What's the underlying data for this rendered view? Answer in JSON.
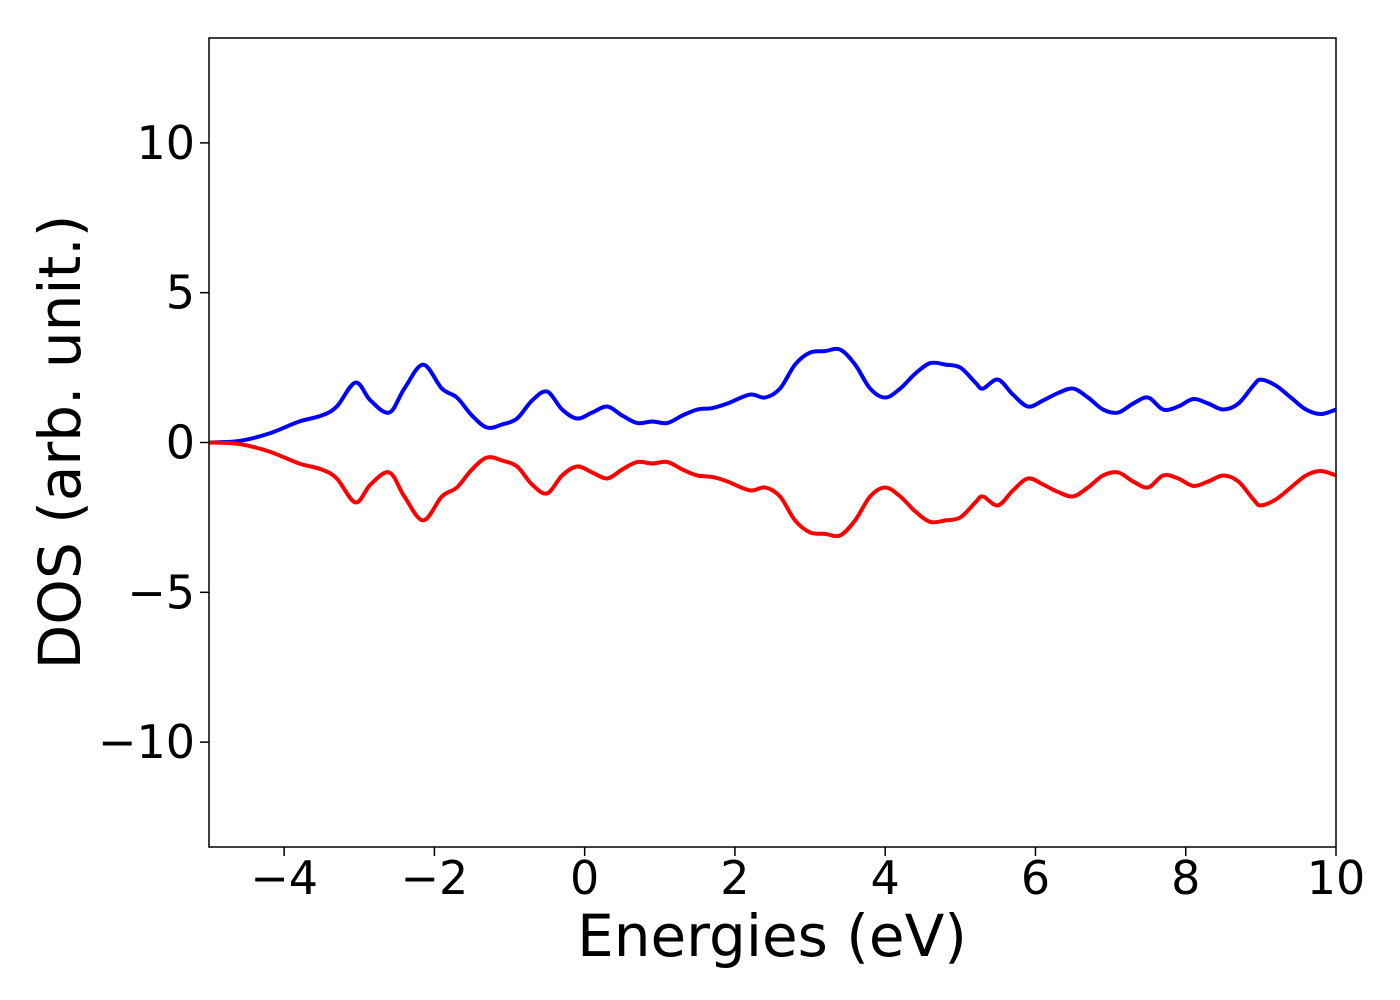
{
  "chart_data": {
    "type": "line",
    "title": "",
    "xlabel": "Energies (eV)",
    "ylabel": "DOS (arb. unit.)",
    "xlim": [
      -5,
      10
    ],
    "ylim": [
      -13.5,
      13.5
    ],
    "xticks": [
      -4,
      -2,
      0,
      2,
      4,
      6,
      8,
      10
    ],
    "xtick_labels": [
      "−4",
      "−2",
      "0",
      "2",
      "4",
      "6",
      "8",
      "10"
    ],
    "yticks": [
      -10,
      -5,
      0,
      5,
      10
    ],
    "ytick_labels": [
      "−10",
      "−5",
      "0",
      "5",
      "10"
    ],
    "grid": false,
    "legend": "none",
    "series": [
      {
        "color": "#0000ff",
        "x": [
          -5.0,
          -4.6,
          -4.2,
          -3.8,
          -3.5,
          -3.3,
          -3.05,
          -2.85,
          -2.6,
          -2.4,
          -2.15,
          -1.9,
          -1.7,
          -1.5,
          -1.3,
          -1.1,
          -0.9,
          -0.7,
          -0.5,
          -0.3,
          -0.1,
          0.1,
          0.3,
          0.5,
          0.7,
          0.9,
          1.1,
          1.3,
          1.5,
          1.7,
          1.9,
          2.2,
          2.4,
          2.6,
          2.8,
          3.0,
          3.2,
          3.4,
          3.6,
          3.8,
          4.0,
          4.2,
          4.4,
          4.6,
          4.8,
          5.0,
          5.2,
          5.3,
          5.5,
          5.7,
          5.9,
          6.1,
          6.3,
          6.5,
          6.7,
          6.9,
          7.1,
          7.3,
          7.5,
          7.7,
          7.9,
          8.1,
          8.3,
          8.5,
          8.7,
          8.9,
          9.0,
          9.2,
          9.4,
          9.6,
          9.8,
          10.0
        ],
        "y": [
          0.0,
          0.05,
          0.3,
          0.7,
          0.9,
          1.2,
          2.0,
          1.4,
          1.0,
          1.8,
          2.6,
          1.8,
          1.5,
          0.9,
          0.5,
          0.6,
          0.8,
          1.4,
          1.7,
          1.1,
          0.8,
          1.0,
          1.2,
          0.9,
          0.65,
          0.7,
          0.65,
          0.9,
          1.1,
          1.15,
          1.3,
          1.6,
          1.5,
          1.8,
          2.6,
          3.0,
          3.05,
          3.1,
          2.6,
          1.8,
          1.5,
          1.8,
          2.3,
          2.65,
          2.6,
          2.5,
          2.0,
          1.8,
          2.1,
          1.6,
          1.2,
          1.4,
          1.65,
          1.8,
          1.5,
          1.1,
          1.0,
          1.3,
          1.5,
          1.1,
          1.2,
          1.45,
          1.3,
          1.1,
          1.3,
          1.9,
          2.1,
          1.9,
          1.5,
          1.1,
          0.95,
          1.1
        ]
      },
      {
        "color": "#ff0000",
        "x": [
          -5.0,
          -4.6,
          -4.2,
          -3.8,
          -3.5,
          -3.3,
          -3.05,
          -2.85,
          -2.6,
          -2.4,
          -2.15,
          -1.9,
          -1.7,
          -1.5,
          -1.3,
          -1.1,
          -0.9,
          -0.7,
          -0.5,
          -0.3,
          -0.1,
          0.1,
          0.3,
          0.5,
          0.7,
          0.9,
          1.1,
          1.3,
          1.5,
          1.7,
          1.9,
          2.2,
          2.4,
          2.6,
          2.8,
          3.0,
          3.2,
          3.4,
          3.6,
          3.8,
          4.0,
          4.2,
          4.4,
          4.6,
          4.8,
          5.0,
          5.2,
          5.3,
          5.5,
          5.7,
          5.9,
          6.1,
          6.3,
          6.5,
          6.7,
          6.9,
          7.1,
          7.3,
          7.5,
          7.7,
          7.9,
          8.1,
          8.3,
          8.5,
          8.7,
          8.9,
          9.0,
          9.2,
          9.4,
          9.6,
          9.8,
          10.0
        ],
        "y": [
          0.0,
          -0.05,
          -0.3,
          -0.7,
          -0.9,
          -1.2,
          -2.0,
          -1.4,
          -1.0,
          -1.8,
          -2.6,
          -1.8,
          -1.5,
          -0.9,
          -0.5,
          -0.6,
          -0.8,
          -1.4,
          -1.7,
          -1.1,
          -0.8,
          -1.0,
          -1.2,
          -0.9,
          -0.65,
          -0.7,
          -0.65,
          -0.9,
          -1.1,
          -1.15,
          -1.3,
          -1.6,
          -1.5,
          -1.8,
          -2.6,
          -3.0,
          -3.05,
          -3.1,
          -2.6,
          -1.8,
          -1.5,
          -1.8,
          -2.3,
          -2.65,
          -2.6,
          -2.5,
          -2.0,
          -1.8,
          -2.1,
          -1.6,
          -1.2,
          -1.4,
          -1.65,
          -1.8,
          -1.5,
          -1.1,
          -1.0,
          -1.3,
          -1.5,
          -1.1,
          -1.2,
          -1.45,
          -1.3,
          -1.1,
          -1.3,
          -1.9,
          -2.1,
          -1.9,
          -1.5,
          -1.1,
          -0.95,
          -1.1
        ]
      }
    ]
  }
}
